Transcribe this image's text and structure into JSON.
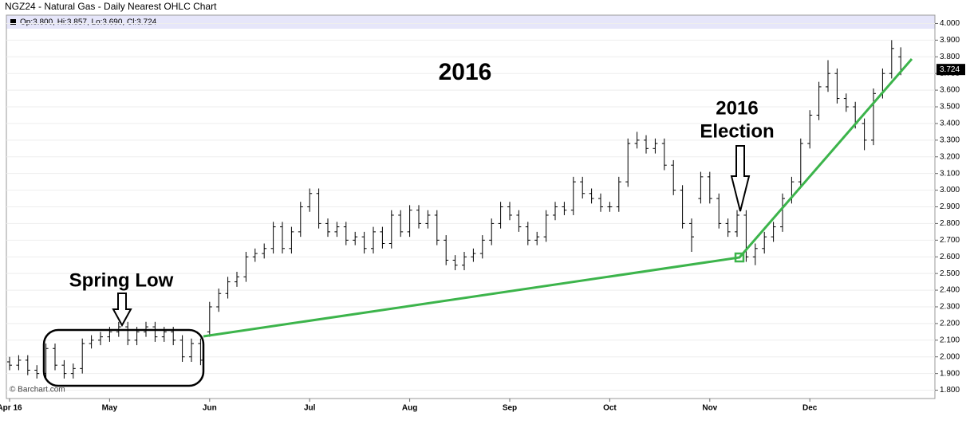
{
  "chart_data": {
    "type": "ohlc",
    "title": "NGZ24 - Natural Gas - Daily Nearest OHLC Chart",
    "ohlc_label": "Op:3.800, Hi:3.857, Lo:3.690, Cl:3.724",
    "last_price_label": "3.724",
    "credit": "© Barchart.com",
    "color": "#000000",
    "grid": true,
    "annotations": {
      "year": "2016",
      "spring": "Spring Low",
      "election_year": "2016",
      "election": "Election"
    },
    "categories": [
      "Apr 16",
      null,
      null,
      null,
      null,
      null,
      null,
      null,
      null,
      null,
      null,
      "May",
      null,
      null,
      null,
      null,
      null,
      null,
      null,
      null,
      null,
      null,
      "Jun",
      null,
      null,
      null,
      null,
      null,
      null,
      null,
      null,
      null,
      null,
      "Jul",
      null,
      null,
      null,
      null,
      null,
      null,
      null,
      null,
      null,
      null,
      "Aug",
      null,
      null,
      null,
      null,
      null,
      null,
      null,
      null,
      null,
      null,
      "Sep",
      null,
      null,
      null,
      null,
      null,
      null,
      null,
      null,
      null,
      null,
      "Oct",
      null,
      null,
      null,
      null,
      null,
      null,
      null,
      null,
      null,
      null,
      "Nov",
      null,
      null,
      null,
      null,
      null,
      null,
      null,
      null,
      null,
      null,
      "Dec",
      null,
      null,
      null,
      null,
      null,
      null,
      null,
      null,
      null,
      null
    ],
    "open": [
      1.97,
      1.95,
      1.98,
      1.92,
      1.9,
      2.05,
      1.95,
      1.9,
      1.93,
      2.08,
      2.1,
      2.12,
      2.15,
      2.18,
      2.1,
      2.15,
      2.18,
      2.12,
      2.15,
      2.1,
      2.0,
      2.08,
      2.15,
      2.3,
      2.38,
      2.45,
      2.48,
      2.6,
      2.62,
      2.65,
      2.78,
      2.65,
      2.75,
      2.9,
      2.98,
      2.8,
      2.75,
      2.78,
      2.7,
      2.72,
      2.65,
      2.75,
      2.68,
      2.85,
      2.75,
      2.88,
      2.8,
      2.85,
      2.7,
      2.58,
      2.55,
      2.6,
      2.62,
      2.7,
      2.8,
      2.9,
      2.85,
      2.78,
      2.7,
      2.72,
      2.85,
      2.9,
      2.88,
      3.05,
      2.98,
      2.95,
      2.9,
      2.9,
      3.05,
      3.28,
      3.3,
      3.25,
      3.28,
      3.15,
      3.0,
      2.8,
      2.95,
      3.08,
      2.95,
      2.8,
      2.75,
      2.85,
      2.6,
      2.65,
      2.72,
      2.78,
      2.95,
      3.05,
      3.28,
      3.45,
      3.62,
      3.7,
      3.55,
      3.5,
      3.4,
      3.3,
      3.58,
      3.7,
      3.8
    ],
    "high": [
      2.0,
      2.01,
      2.01,
      1.95,
      2.08,
      2.08,
      1.98,
      1.96,
      2.11,
      2.13,
      2.15,
      2.18,
      2.21,
      2.21,
      2.18,
      2.21,
      2.21,
      2.18,
      2.18,
      2.13,
      2.11,
      2.11,
      2.33,
      2.41,
      2.48,
      2.51,
      2.63,
      2.65,
      2.68,
      2.81,
      2.81,
      2.78,
      2.93,
      3.01,
      3.01,
      2.83,
      2.81,
      2.81,
      2.75,
      2.75,
      2.78,
      2.78,
      2.88,
      2.88,
      2.91,
      2.91,
      2.88,
      2.88,
      2.73,
      2.61,
      2.63,
      2.65,
      2.73,
      2.83,
      2.93,
      2.93,
      2.88,
      2.81,
      2.75,
      2.88,
      2.93,
      2.93,
      3.08,
      3.08,
      3.01,
      2.98,
      2.93,
      3.08,
      3.31,
      3.35,
      3.33,
      3.31,
      3.31,
      3.18,
      3.03,
      2.83,
      3.11,
      3.11,
      2.98,
      2.83,
      2.88,
      2.88,
      2.68,
      2.75,
      2.81,
      2.98,
      3.08,
      3.31,
      3.48,
      3.65,
      3.78,
      3.73,
      3.58,
      3.53,
      3.43,
      3.61,
      3.73,
      3.9,
      3.857
    ],
    "low": [
      1.92,
      1.92,
      1.89,
      1.87,
      1.87,
      1.92,
      1.87,
      1.87,
      1.9,
      2.05,
      2.07,
      2.09,
      2.12,
      2.07,
      2.07,
      2.12,
      2.09,
      2.09,
      2.07,
      1.97,
      1.97,
      1.95,
      2.12,
      2.27,
      2.35,
      2.42,
      2.45,
      2.57,
      2.59,
      2.62,
      2.62,
      2.62,
      2.72,
      2.87,
      2.77,
      2.72,
      2.72,
      2.67,
      2.67,
      2.62,
      2.62,
      2.65,
      2.65,
      2.72,
      2.72,
      2.77,
      2.77,
      2.67,
      2.55,
      2.52,
      2.52,
      2.57,
      2.59,
      2.67,
      2.77,
      2.82,
      2.75,
      2.67,
      2.67,
      2.69,
      2.82,
      2.85,
      2.85,
      2.95,
      2.92,
      2.87,
      2.87,
      2.87,
      3.02,
      3.25,
      3.22,
      3.22,
      3.12,
      2.97,
      2.77,
      2.63,
      2.92,
      2.92,
      2.77,
      2.72,
      2.72,
      2.57,
      2.55,
      2.62,
      2.69,
      2.75,
      2.92,
      3.02,
      3.25,
      3.42,
      3.59,
      3.52,
      3.47,
      3.37,
      3.24,
      3.27,
      3.55,
      3.67,
      3.69
    ],
    "close": [
      1.95,
      1.98,
      1.92,
      1.9,
      2.05,
      1.95,
      1.9,
      1.93,
      2.08,
      2.1,
      2.12,
      2.15,
      2.18,
      2.1,
      2.15,
      2.18,
      2.12,
      2.15,
      2.1,
      2.0,
      2.08,
      1.98,
      2.3,
      2.38,
      2.45,
      2.48,
      2.6,
      2.62,
      2.65,
      2.78,
      2.65,
      2.75,
      2.9,
      2.98,
      2.8,
      2.75,
      2.78,
      2.7,
      2.72,
      2.65,
      2.75,
      2.68,
      2.85,
      2.75,
      2.88,
      2.8,
      2.85,
      2.7,
      2.58,
      2.55,
      2.6,
      2.62,
      2.7,
      2.8,
      2.9,
      2.85,
      2.78,
      2.7,
      2.72,
      2.85,
      2.9,
      2.88,
      3.05,
      2.98,
      2.95,
      2.9,
      2.9,
      3.05,
      3.28,
      3.3,
      3.25,
      3.28,
      3.15,
      3.0,
      2.8,
      2.72,
      3.08,
      2.95,
      2.8,
      2.75,
      2.85,
      2.6,
      2.65,
      2.72,
      2.78,
      2.95,
      3.05,
      3.28,
      3.45,
      3.62,
      3.7,
      3.55,
      3.5,
      3.4,
      3.3,
      3.58,
      3.7,
      3.85,
      3.724
    ],
    "ylim": [
      1.75,
      4.05
    ],
    "yticks": [
      {
        "value": 1.8,
        "label": "1.800"
      },
      {
        "value": 1.9,
        "label": "1.900"
      },
      {
        "value": 2.0,
        "label": "2.000"
      },
      {
        "value": 2.1,
        "label": "2.100"
      },
      {
        "value": 2.2,
        "label": "2.200"
      },
      {
        "value": 2.3,
        "label": "2.300"
      },
      {
        "value": 2.4,
        "label": "2.400"
      },
      {
        "value": 2.5,
        "label": "2.500"
      },
      {
        "value": 2.6,
        "label": "2.600"
      },
      {
        "value": 2.7,
        "label": "2.700"
      },
      {
        "value": 2.8,
        "label": "2.800"
      },
      {
        "value": 2.9,
        "label": "2.900"
      },
      {
        "value": 3.0,
        "label": "3.000"
      },
      {
        "value": 3.1,
        "label": "3.100"
      },
      {
        "value": 3.2,
        "label": "3.200"
      },
      {
        "value": 3.3,
        "label": "3.300"
      },
      {
        "value": 3.4,
        "label": "3.400"
      },
      {
        "value": 3.5,
        "label": "3.500"
      },
      {
        "value": 3.6,
        "label": "3.600"
      },
      {
        "value": 3.7,
        "label": "3.700"
      },
      {
        "value": 3.8,
        "label": "3.800"
      },
      {
        "value": 3.9,
        "label": "3.900"
      },
      {
        "value": 4.0,
        "label": "4.000"
      }
    ]
  }
}
